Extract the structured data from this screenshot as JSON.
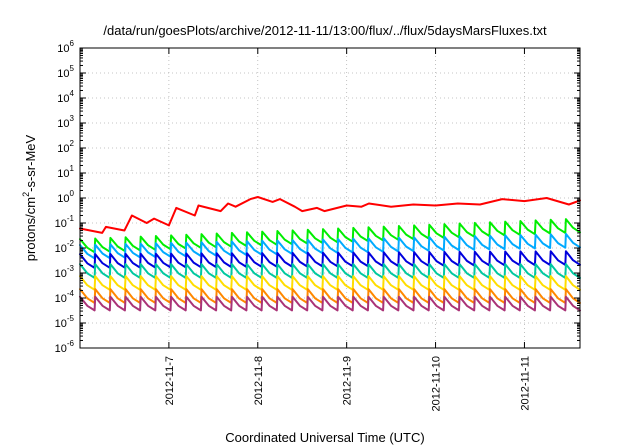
{
  "chart_data": {
    "type": "line",
    "title": "/data/run/goesPlots/archive/2012-11-11/13:00/flux/../flux/5daysMarsFluxes.txt",
    "xlabel": "Coordinated Universal Time (UTC)",
    "ylabel": {
      "prefix": "protons/cm",
      "sup": "2",
      "suffix": "-s-sr-MeV"
    },
    "x_unit": "days",
    "xlim": [
      "2012-11-06T00:00",
      "2012-11-11T15:00"
    ],
    "x_ticks": [
      "2012-11-7",
      "2012-11-8",
      "2012-11-9",
      "2012-11-10",
      "2012-11-11"
    ],
    "y_scale": "log",
    "ylim": [
      1e-06,
      1000000.0
    ],
    "y_ticks": [
      {
        "base": "10",
        "exp": "-6"
      },
      {
        "base": "10",
        "exp": "-5"
      },
      {
        "base": "10",
        "exp": "-4"
      },
      {
        "base": "10",
        "exp": "-3"
      },
      {
        "base": "10",
        "exp": "-2"
      },
      {
        "base": "10",
        "exp": "-1"
      },
      {
        "base": "10",
        "exp": "0"
      },
      {
        "base": "10",
        "exp": "1"
      },
      {
        "base": "10",
        "exp": "2"
      },
      {
        "base": "10",
        "exp": "3"
      },
      {
        "base": "10",
        "exp": "4"
      },
      {
        "base": "10",
        "exp": "5"
      },
      {
        "base": "10",
        "exp": "6"
      }
    ],
    "grid": true,
    "legend": "none",
    "series": [
      {
        "color": "#ff0000",
        "x": [
          "2012-11-06T00:00",
          "2012-11-06T06:00",
          "2012-11-06T07:00",
          "2012-11-06T12:00",
          "2012-11-06T14:00",
          "2012-11-06T18:00",
          "2012-11-06T20:00",
          "2012-11-07T00:00",
          "2012-11-07T02:00",
          "2012-11-07T07:00",
          "2012-11-07T08:00",
          "2012-11-07T14:00",
          "2012-11-07T16:00",
          "2012-11-07T18:00",
          "2012-11-07T22:00",
          "2012-11-08T00:00",
          "2012-11-08T04:00",
          "2012-11-08T06:00",
          "2012-11-08T10:00",
          "2012-11-08T12:00",
          "2012-11-08T16:00",
          "2012-11-08T18:00",
          "2012-11-09T00:00",
          "2012-11-09T04:00",
          "2012-11-09T06:00",
          "2012-11-09T12:00",
          "2012-11-09T18:00",
          "2012-11-10T00:00",
          "2012-11-10T06:00",
          "2012-11-10T12:00",
          "2012-11-10T18:00",
          "2012-11-11T00:00",
          "2012-11-11T06:00",
          "2012-11-11T12:00",
          "2012-11-11T15:00"
        ],
        "y": [
          0.06,
          0.04,
          0.07,
          0.05,
          0.2,
          0.1,
          0.15,
          0.08,
          0.4,
          0.2,
          0.5,
          0.3,
          0.6,
          0.45,
          0.9,
          1.1,
          0.7,
          0.9,
          0.45,
          0.3,
          0.4,
          0.3,
          0.5,
          0.45,
          0.6,
          0.45,
          0.55,
          0.5,
          0.6,
          0.55,
          0.9,
          0.75,
          1.0,
          0.55,
          0.8
        ]
      },
      {
        "color": "#00ee00",
        "x": [
          "2012-11-06T00:00",
          "2012-11-11T15:00"
        ],
        "y": [
          0.012,
          0.08
        ],
        "sawtooth": true
      },
      {
        "color": "#00aaff",
        "x": [
          "2012-11-06T00:00",
          "2012-11-11T15:00"
        ],
        "y": [
          0.007,
          0.02
        ],
        "sawtooth": true
      },
      {
        "color": "#0000dd",
        "x": [
          "2012-11-06T00:00",
          "2012-11-11T15:00"
        ],
        "y": [
          0.003,
          0.004
        ],
        "sawtooth": true
      },
      {
        "color": "#00c8a0",
        "x": [
          "2012-11-06T00:00",
          "2012-11-11T15:00"
        ],
        "y": [
          0.0012,
          0.0012
        ],
        "sawtooth": true
      },
      {
        "color": "#ffdd00",
        "x": [
          "2012-11-06T00:00",
          "2012-11-11T15:00"
        ],
        "y": [
          0.0004,
          0.0004
        ],
        "sawtooth": true
      },
      {
        "color": "#ff8800",
        "x": [
          "2012-11-06T00:00",
          "2012-11-11T15:00"
        ],
        "y": [
          0.00012,
          0.00012
        ],
        "sawtooth": true
      },
      {
        "color": "#aa3377",
        "x": [
          "2012-11-06T00:00",
          "2012-11-11T15:00"
        ],
        "y": [
          6e-05,
          6e-05
        ],
        "sawtooth": true
      }
    ]
  }
}
